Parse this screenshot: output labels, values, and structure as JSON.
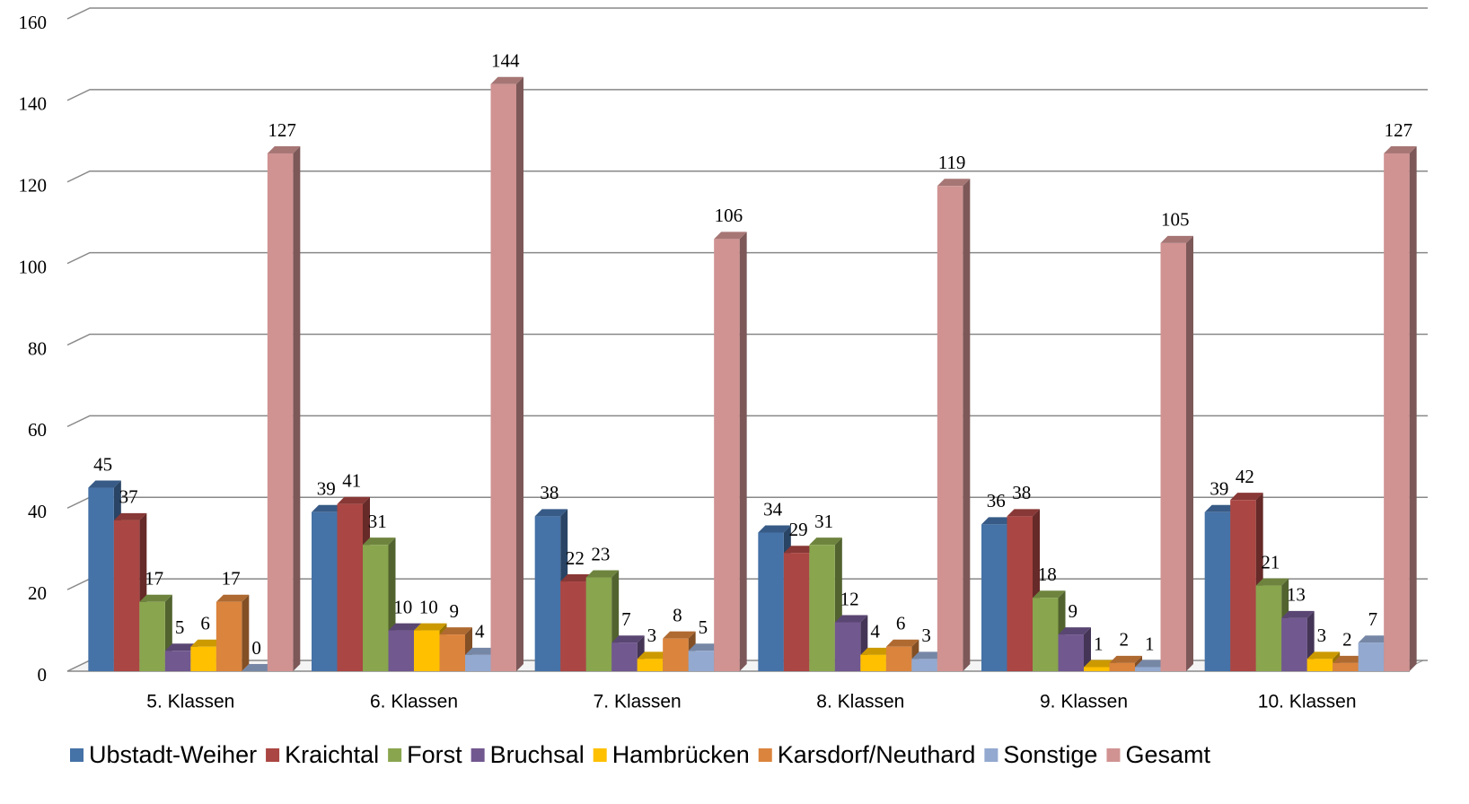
{
  "chart_data": {
    "type": "bar3d",
    "categories": [
      "5. Klassen",
      "6. Klassen",
      "7. Klassen",
      "8. Klassen",
      "9. Klassen",
      "10. Klassen"
    ],
    "series": [
      {
        "name": "Ubstadt-Weiher",
        "color": "#4572a7",
        "values": [
          45,
          39,
          38,
          34,
          36,
          39
        ]
      },
      {
        "name": "Kraichtal",
        "color": "#aa4643",
        "values": [
          37,
          41,
          22,
          29,
          38,
          42
        ]
      },
      {
        "name": "Forst",
        "color": "#89a54e",
        "values": [
          17,
          31,
          23,
          31,
          18,
          21
        ]
      },
      {
        "name": "Bruchsal",
        "color": "#71588f",
        "values": [
          5,
          10,
          7,
          12,
          9,
          13
        ]
      },
      {
        "name": "Hambrücken",
        "color": "#ffc000",
        "values": [
          6,
          10,
          3,
          4,
          1,
          3
        ]
      },
      {
        "name": "Karsdorf/Neuthard",
        "color": "#db843d",
        "values": [
          17,
          9,
          8,
          6,
          2,
          2
        ]
      },
      {
        "name": "Sonstige",
        "color": "#93a9cf",
        "values": [
          0,
          4,
          5,
          3,
          1,
          7
        ]
      },
      {
        "name": "Gesamt",
        "color": "#d09392",
        "values": [
          127,
          144,
          106,
          119,
          105,
          127
        ]
      }
    ],
    "ylim": [
      0,
      160
    ],
    "yticks": [
      0,
      20,
      40,
      60,
      80,
      100,
      120,
      140,
      160
    ],
    "grid": true,
    "legend": "bottom"
  }
}
